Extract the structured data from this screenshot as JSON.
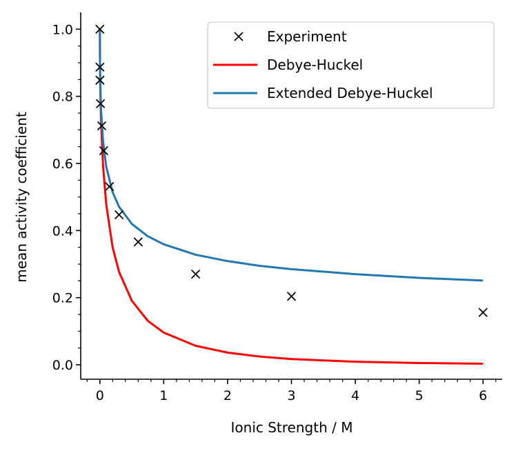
{
  "chart_data": {
    "type": "line",
    "title": "",
    "xlabel": "Ionic Strength / M",
    "ylabel": "mean activity coefficient",
    "xlim": [
      -0.3,
      6.3
    ],
    "ylim": [
      -0.043,
      1.05
    ],
    "xticks": [
      0,
      1,
      2,
      3,
      4,
      5,
      6
    ],
    "xtick_labels": [
      "0",
      "1",
      "2",
      "3",
      "4",
      "5",
      "6"
    ],
    "yticks": [
      0.0,
      0.2,
      0.4,
      0.6,
      0.8,
      1.0
    ],
    "ytick_labels": [
      "0.0",
      "0.2",
      "0.4",
      "0.6",
      "0.8",
      "1.0"
    ],
    "grid": false,
    "legend_position": "top-right",
    "series": [
      {
        "name": "Experiment",
        "style": "markers-x",
        "color": "#000000",
        "x": [
          0,
          0.001,
          0.002,
          0.01,
          0.03,
          0.06,
          0.15,
          0.3,
          0.6,
          1.5,
          3,
          6
        ],
        "y": [
          1.0,
          0.887,
          0.848,
          0.778,
          0.712,
          0.638,
          0.531,
          0.447,
          0.366,
          0.27,
          0.204,
          0.156
        ]
      },
      {
        "name": "Debye-Huckel",
        "style": "line",
        "color": "#ff0000",
        "x": [
          0,
          0.001,
          0.005,
          0.01,
          0.02,
          0.05,
          0.1,
          0.2,
          0.3,
          0.5,
          0.75,
          1,
          1.5,
          2,
          2.5,
          3,
          4,
          5,
          6
        ],
        "y": [
          1,
          0.929,
          0.847,
          0.791,
          0.718,
          0.592,
          0.477,
          0.35,
          0.277,
          0.191,
          0.131,
          0.096,
          0.0567,
          0.0363,
          0.0246,
          0.0172,
          0.0092,
          0.0053,
          0.0032
        ]
      },
      {
        "name": "Extended Debye-Huckel",
        "style": "line",
        "color": "#1f77b4",
        "x": [
          0,
          0.001,
          0.005,
          0.01,
          0.02,
          0.05,
          0.1,
          0.2,
          0.3,
          0.5,
          0.75,
          1,
          1.5,
          2,
          2.5,
          3,
          4,
          5,
          6
        ],
        "y": [
          1,
          0.931,
          0.859,
          0.812,
          0.755,
          0.666,
          0.59,
          0.514,
          0.471,
          0.42,
          0.383,
          0.359,
          0.328,
          0.309,
          0.295,
          0.285,
          0.27,
          0.259,
          0.251
        ]
      }
    ]
  }
}
